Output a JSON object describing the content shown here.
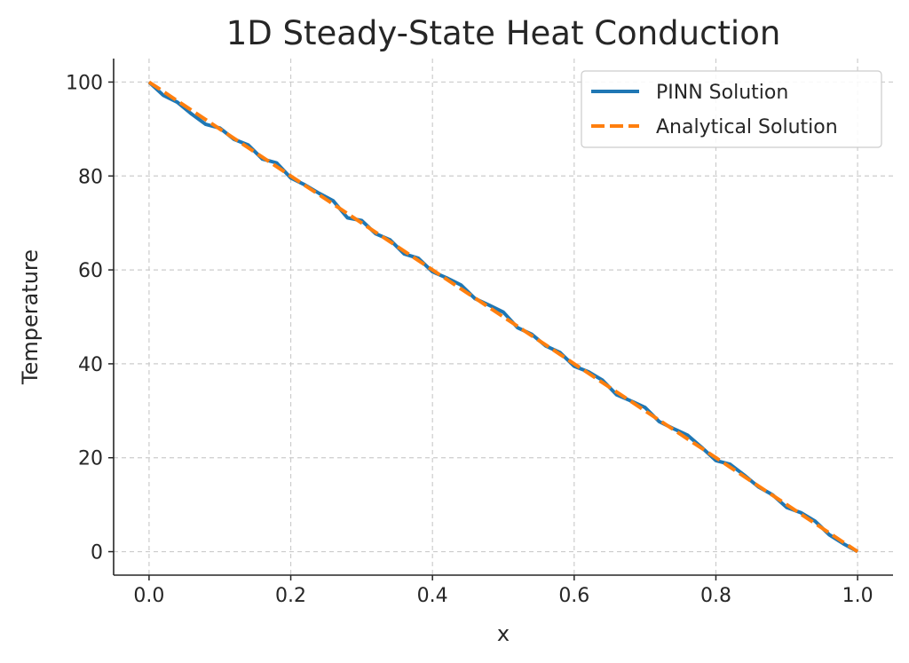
{
  "chart_data": {
    "type": "line",
    "title": "1D Steady-State Heat Conduction",
    "xlabel": "x",
    "ylabel": "Temperature",
    "xlim": [
      -0.05,
      1.05
    ],
    "ylim": [
      -5,
      105
    ],
    "xticks": [
      "0.0",
      "0.2",
      "0.4",
      "0.6",
      "0.8",
      "1.0"
    ],
    "xtick_values": [
      0,
      0.2,
      0.4,
      0.6,
      0.8,
      1.0
    ],
    "yticks": [
      "0",
      "20",
      "40",
      "60",
      "80",
      "100"
    ],
    "ytick_values": [
      0,
      20,
      40,
      60,
      80,
      100
    ],
    "grid": true,
    "legend_position": "top-right",
    "x": [
      0,
      0.02,
      0.04,
      0.06,
      0.08,
      0.1,
      0.12,
      0.14,
      0.16,
      0.18,
      0.2,
      0.22,
      0.24,
      0.26,
      0.28,
      0.3,
      0.32,
      0.34,
      0.36,
      0.38,
      0.4,
      0.42,
      0.44,
      0.46,
      0.48,
      0.5,
      0.52,
      0.54,
      0.56,
      0.58,
      0.6,
      0.62,
      0.64,
      0.66,
      0.68,
      0.7,
      0.72,
      0.74,
      0.76,
      0.78,
      0.8,
      0.82,
      0.84,
      0.86,
      0.88,
      0.9,
      0.92,
      0.94,
      0.96,
      0.98,
      1.0
    ],
    "series": [
      {
        "name": "PINN Solution",
        "color": "#1f77b4",
        "style": "solid",
        "values": [
          100,
          97.2,
          95.7,
          93.2,
          91.0,
          90.2,
          87.8,
          86.6,
          83.6,
          82.8,
          79.6,
          78.1,
          76.3,
          74.7,
          71.1,
          70.5,
          67.7,
          66.4,
          63.4,
          62.5,
          59.6,
          58.3,
          56.8,
          53.9,
          52.5,
          51.0,
          47.7,
          46.3,
          43.8,
          42.4,
          39.5,
          38.3,
          36.5,
          33.4,
          32.1,
          30.7,
          27.7,
          26.2,
          24.8,
          22.2,
          19.4,
          18.6,
          16.3,
          13.8,
          12.1,
          9.4,
          8.3,
          6.5,
          3.6,
          1.7,
          0
        ]
      },
      {
        "name": "Analytical Solution",
        "color": "#ff7f0e",
        "style": "dashed",
        "values": [
          100,
          98,
          96,
          94,
          92,
          90,
          88,
          86,
          84,
          82,
          80,
          78,
          76,
          74,
          72,
          70,
          68,
          66,
          64,
          62,
          60,
          58,
          56,
          54,
          52,
          50,
          48,
          46,
          44,
          42,
          40,
          38,
          36,
          34,
          32,
          30,
          28,
          26,
          24,
          22,
          20,
          18,
          16,
          14,
          12,
          10,
          8,
          6,
          4,
          2,
          0
        ]
      }
    ]
  }
}
